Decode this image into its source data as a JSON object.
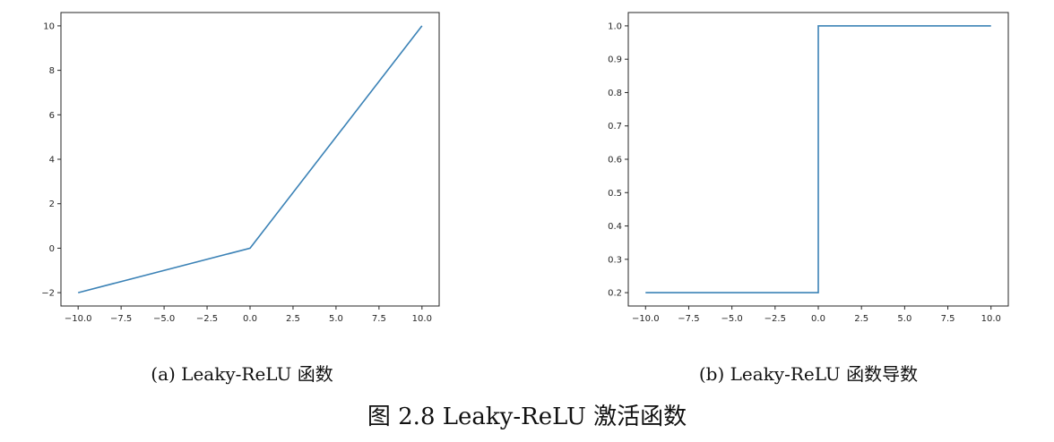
{
  "figure": {
    "caption": "图 2.8    Leaky-ReLU 激活函数"
  },
  "colors": {
    "line": "#3b82b6",
    "axis": "#262626"
  },
  "chart_data": [
    {
      "type": "line",
      "caption": "(a) Leaky-ReLU 函数",
      "title": "",
      "xlabel": "",
      "ylabel": "",
      "x": [
        -10,
        0,
        10
      ],
      "series": [
        {
          "values": [
            -2,
            0,
            10
          ]
        }
      ],
      "xlim": [
        -11.0,
        11.0
      ],
      "ylim": [
        -2.6,
        10.6
      ],
      "xticks": [
        -10,
        -7.5,
        -5,
        -2.5,
        0,
        2.5,
        5,
        7.5,
        10
      ],
      "xtick_labels": [
        "−10.0",
        "−7.5",
        "−5.0",
        "−2.5",
        "0.0",
        "2.5",
        "5.0",
        "7.5",
        "10.0"
      ],
      "yticks": [
        -2,
        0,
        2,
        4,
        6,
        8,
        10
      ],
      "ytick_labels": [
        "−2",
        "0",
        "2",
        "4",
        "6",
        "8",
        "10"
      ],
      "grid": false,
      "legend": "none"
    },
    {
      "type": "line",
      "caption": "(b) Leaky-ReLU 函数导数",
      "title": "",
      "xlabel": "",
      "ylabel": "",
      "x": [
        -10,
        0,
        0,
        10
      ],
      "series": [
        {
          "values": [
            0.2,
            0.2,
            1.0,
            1.0
          ]
        }
      ],
      "xlim": [
        -11.0,
        11.0
      ],
      "ylim": [
        0.16,
        1.04
      ],
      "xticks": [
        -10,
        -7.5,
        -5,
        -2.5,
        0,
        2.5,
        5,
        7.5,
        10
      ],
      "xtick_labels": [
        "−10.0",
        "−7.5",
        "−5.0",
        "−2.5",
        "0.0",
        "2.5",
        "5.0",
        "7.5",
        "10.0"
      ],
      "yticks": [
        0.2,
        0.3,
        0.4,
        0.5,
        0.6,
        0.7,
        0.8,
        0.9,
        1.0
      ],
      "ytick_labels": [
        "0.2",
        "0.3",
        "0.4",
        "0.5",
        "0.6",
        "0.7",
        "0.8",
        "0.9",
        "1.0"
      ],
      "grid": false,
      "legend": "none"
    }
  ]
}
